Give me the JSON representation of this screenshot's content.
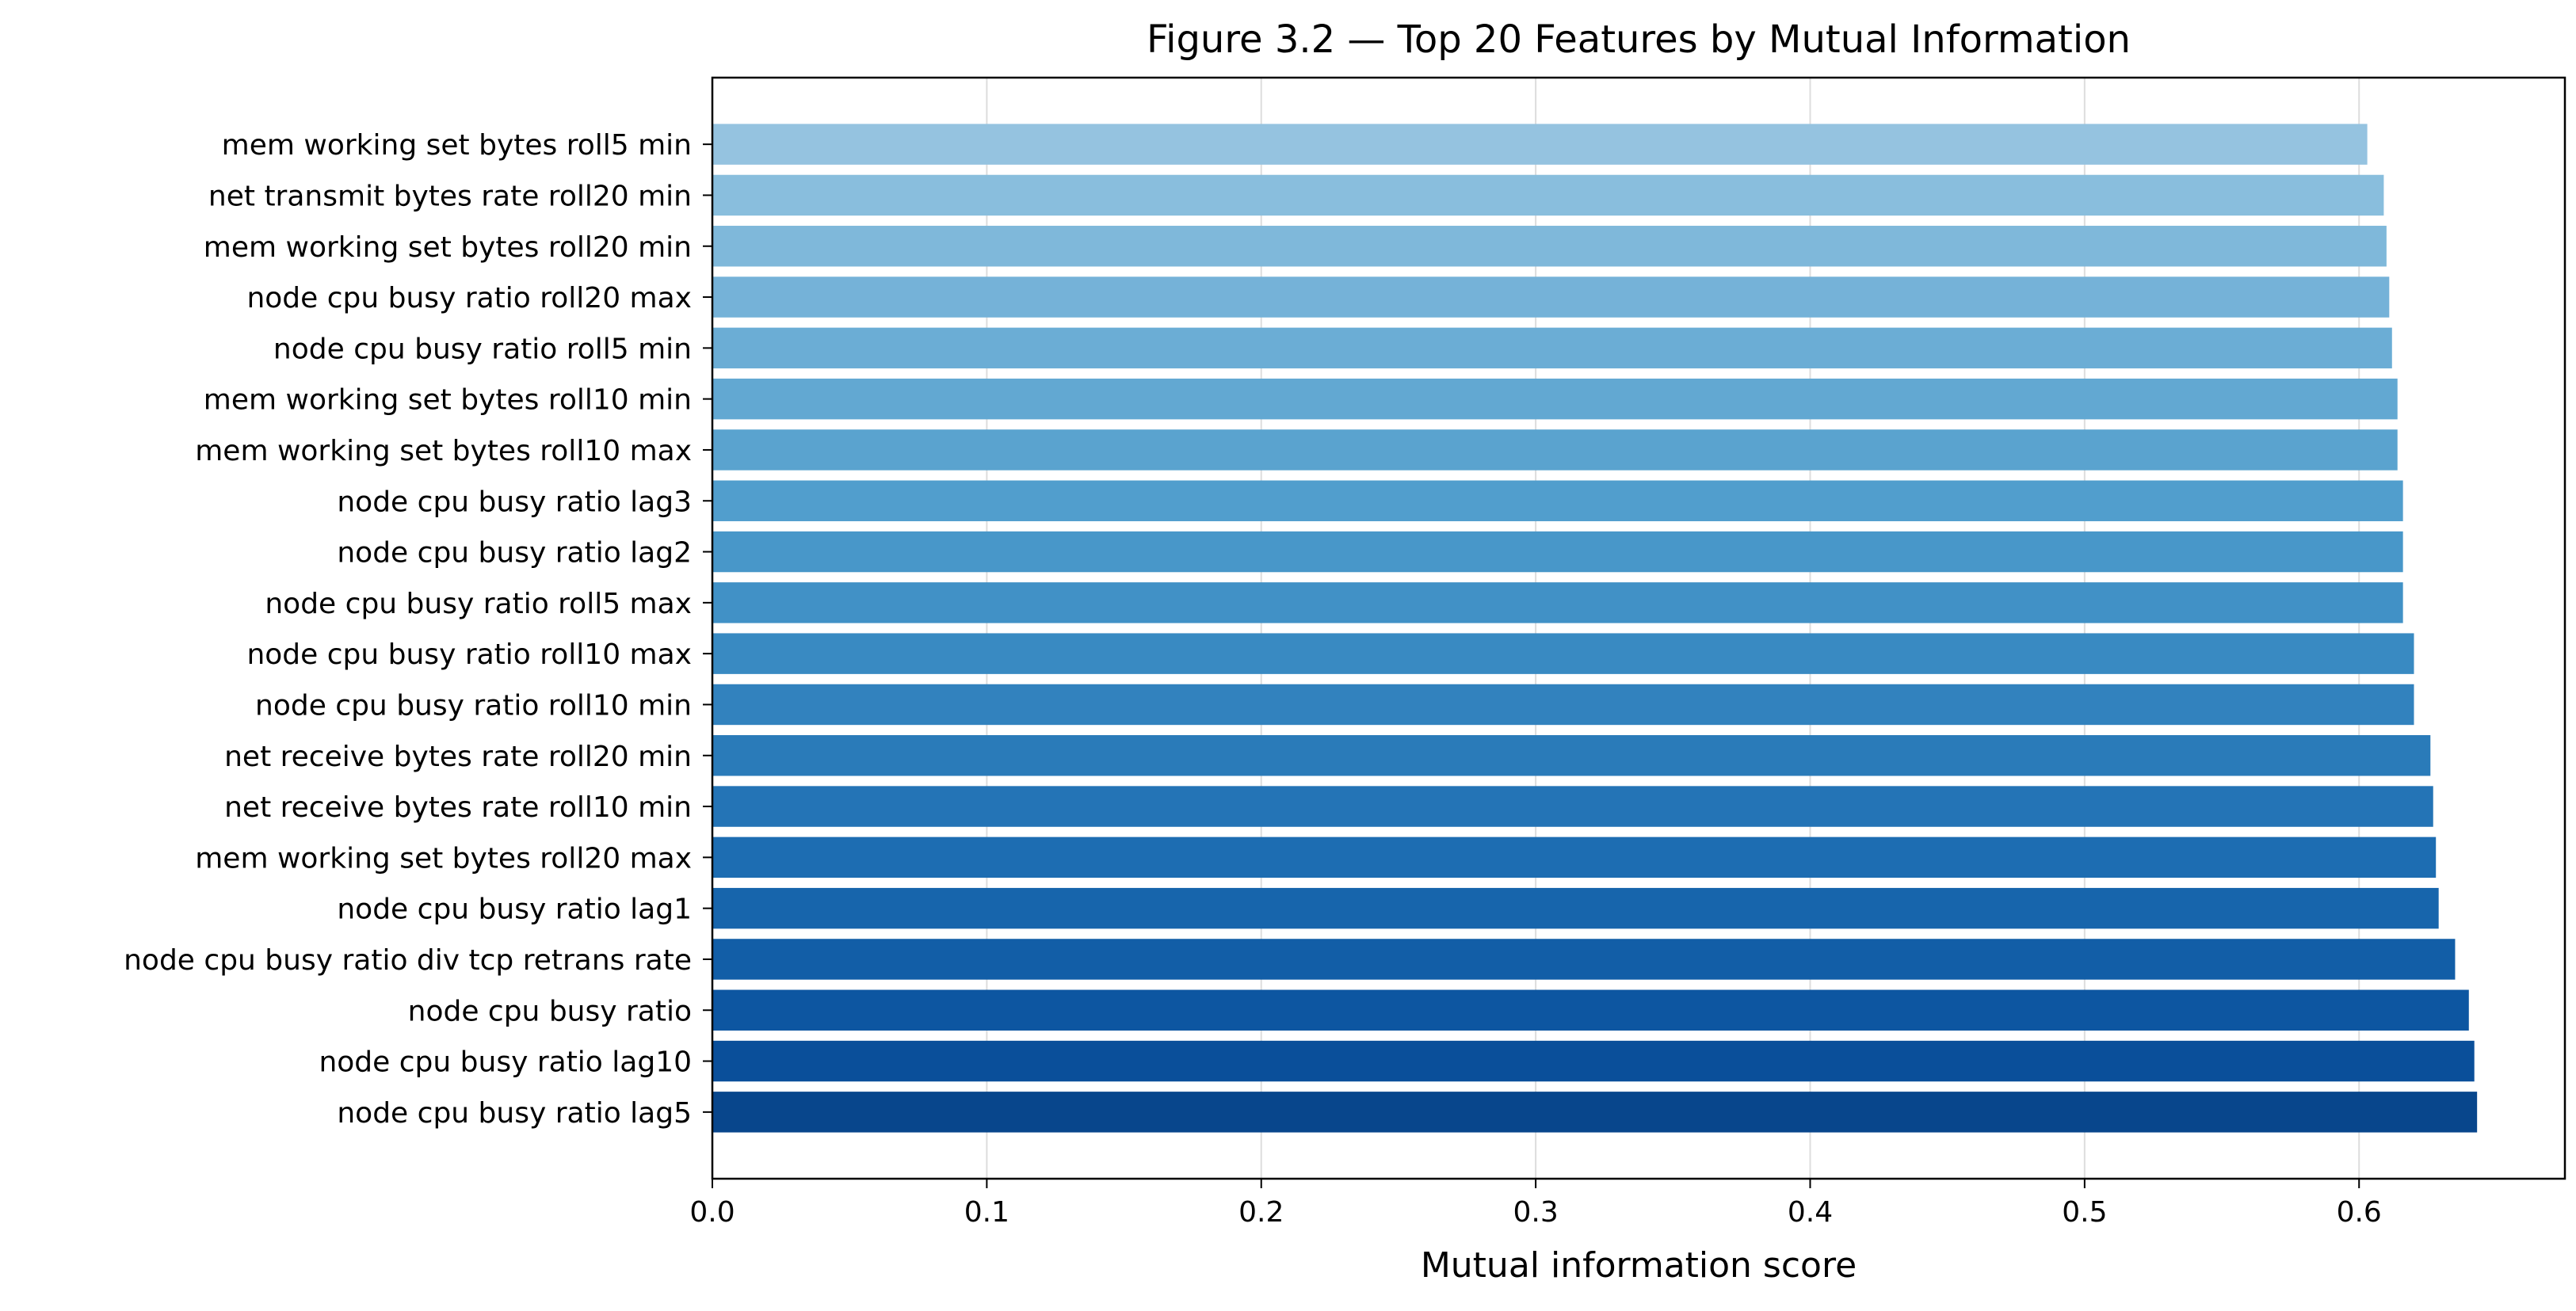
{
  "chart_data": {
    "type": "bar",
    "orientation": "horizontal",
    "title": "Figure 3.2 — Top 20 Features by Mutual Information",
    "xlabel": "Mutual information score",
    "ylabel": "",
    "xlim": [
      0.0,
      0.675
    ],
    "xticks": [
      "0.0",
      "0.1",
      "0.2",
      "0.3",
      "0.4",
      "0.5",
      "0.6"
    ],
    "grid": "x",
    "categories": [
      "node cpu busy ratio lag5",
      "node cpu busy ratio lag10",
      "node cpu busy ratio",
      "node cpu busy ratio div tcp retrans rate",
      "node cpu busy ratio lag1",
      "mem working set bytes roll20 max",
      "net receive bytes rate roll10 min",
      "net receive bytes rate roll20 min",
      "node cpu busy ratio roll10 min",
      "node cpu busy ratio roll10 max",
      "node cpu busy ratio roll5 max",
      "node cpu busy ratio lag2",
      "node cpu busy ratio lag3",
      "mem working set bytes roll10 max",
      "mem working set bytes roll10 min",
      "node cpu busy ratio roll5 min",
      "node cpu busy ratio roll20 max",
      "mem working set bytes roll20 min",
      "net transmit bytes rate roll20 min",
      "mem working set bytes roll5 min"
    ],
    "values": [
      0.643,
      0.642,
      0.64,
      0.635,
      0.629,
      0.628,
      0.627,
      0.626,
      0.62,
      0.62,
      0.616,
      0.616,
      0.616,
      0.614,
      0.614,
      0.612,
      0.611,
      0.61,
      0.609,
      0.603
    ],
    "colors": [
      "#08468c",
      "#0a4f9a",
      "#0d56a1",
      "#125ea7",
      "#1765ac",
      "#1d6db2",
      "#2474b6",
      "#2a7bb9",
      "#3282be",
      "#398ac2",
      "#4191c6",
      "#4897c9",
      "#519ecd",
      "#5aa3cf",
      "#62a8d2",
      "#6badd5",
      "#75b2d8",
      "#7fb8da",
      "#89bedd",
      "#95c3e0"
    ]
  }
}
